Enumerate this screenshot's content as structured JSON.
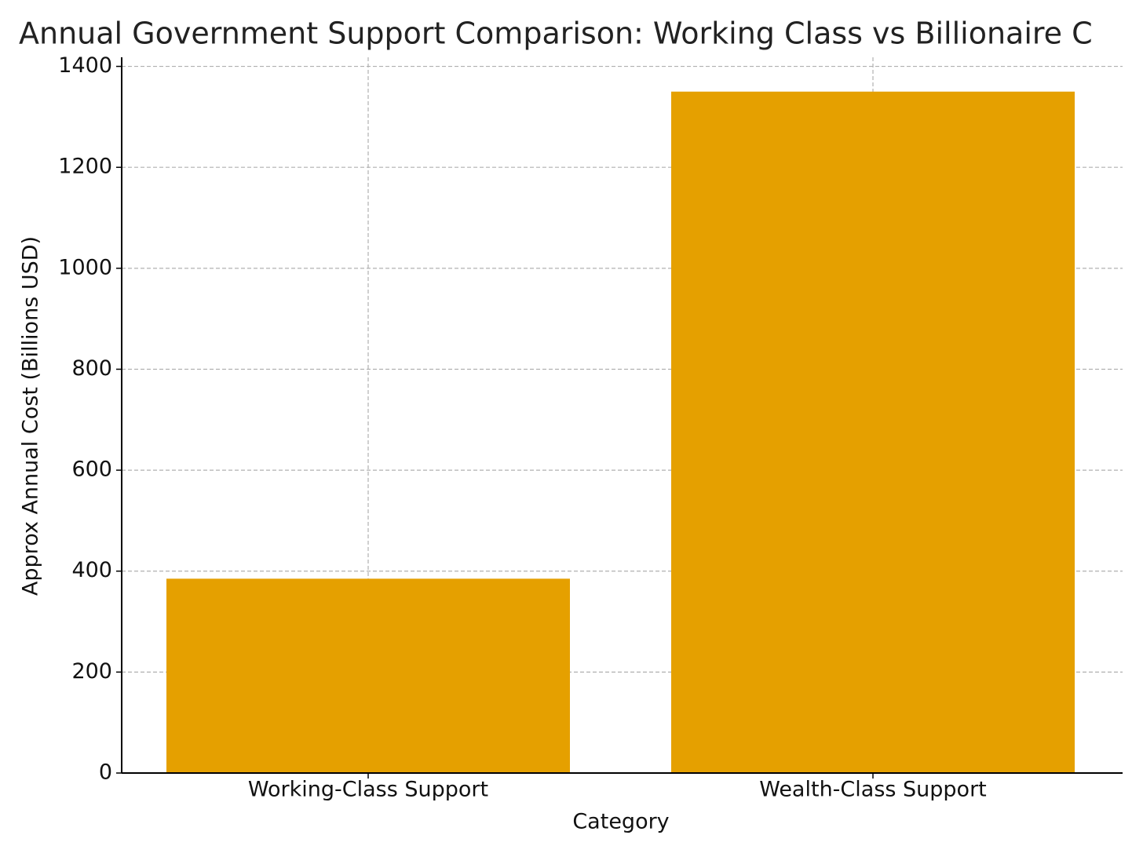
{
  "chart_data": {
    "type": "bar",
    "title": "Annual Government Support Comparison: Working Class vs Billionaire C",
    "x_label": "Category",
    "y_label": "Approx Annual Cost (Billions USD)",
    "categories": [
      "Working-Class Support",
      "Wealth-Class Support"
    ],
    "values": [
      385,
      1350
    ],
    "color": "#e5a000",
    "ylim": [
      0,
      1418
    ],
    "yticks": [
      0,
      200,
      400,
      600,
      800,
      1000,
      1200,
      1400
    ],
    "grid": true
  }
}
